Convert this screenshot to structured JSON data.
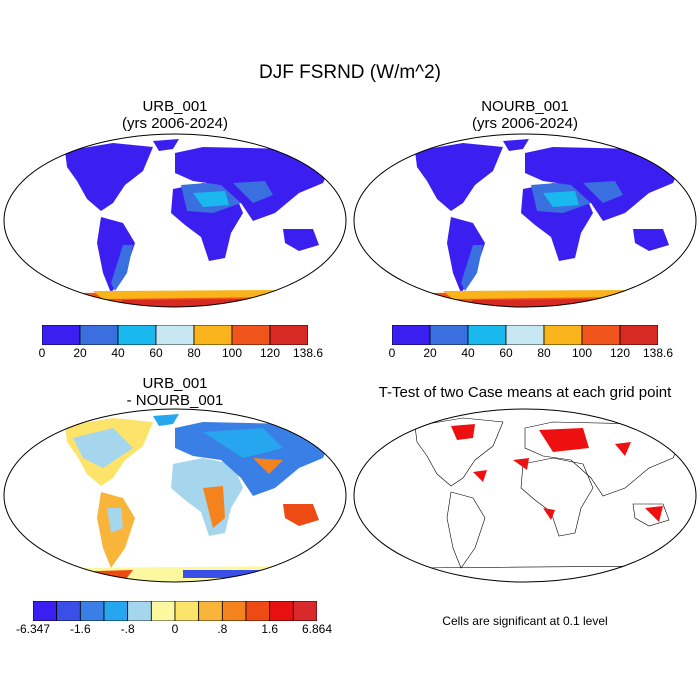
{
  "figure": {
    "title": "DJF FSRND (W/m^2)"
  },
  "panels": [
    {
      "id": "urb",
      "title_line1": "URB_001",
      "title_line2": "(yrs 2006-2024)",
      "colorbar": {
        "labels": [
          "0",
          "20",
          "40",
          "60",
          "80",
          "100",
          "120",
          "138.6"
        ],
        "colors": [
          "#3a1ff0",
          "#3a6fe0",
          "#19b8ee",
          "#c6e6f2",
          "#f8b41a",
          "#f0561c",
          "#d62a22"
        ]
      }
    },
    {
      "id": "nourb",
      "title_line1": "NOURB_001",
      "title_line2": "(yrs 2006-2024)",
      "colorbar": {
        "labels": [
          "0",
          "20",
          "40",
          "60",
          "80",
          "100",
          "120",
          "138.6"
        ],
        "colors": [
          "#3a1ff0",
          "#3a6fe0",
          "#19b8ee",
          "#c6e6f2",
          "#f8b41a",
          "#f0561c",
          "#d62a22"
        ]
      }
    },
    {
      "id": "diff",
      "title_line1": "URB_001",
      "title_line2": "- NOURB_001",
      "colorbar": {
        "labels": [
          "-6.347",
          "-1.6",
          "-.8",
          "0",
          ".8",
          "1.6",
          "6.864"
        ],
        "colors": [
          "#3a1ff0",
          "#3a4fe8",
          "#3a7fe6",
          "#25a6ee",
          "#a6d6ee",
          "#fbf8a0",
          "#fce36a",
          "#f9b43a",
          "#f4831e",
          "#ee4a14",
          "#e81010",
          "#d82a2a"
        ]
      }
    },
    {
      "id": "ttest",
      "title_line1": "T-Test of two Case means at each grid point",
      "note": "Cells are significant at 0.1 level"
    }
  ],
  "colors": {
    "land_blue": "#3a1ff0",
    "significant": "#ee1010"
  }
}
